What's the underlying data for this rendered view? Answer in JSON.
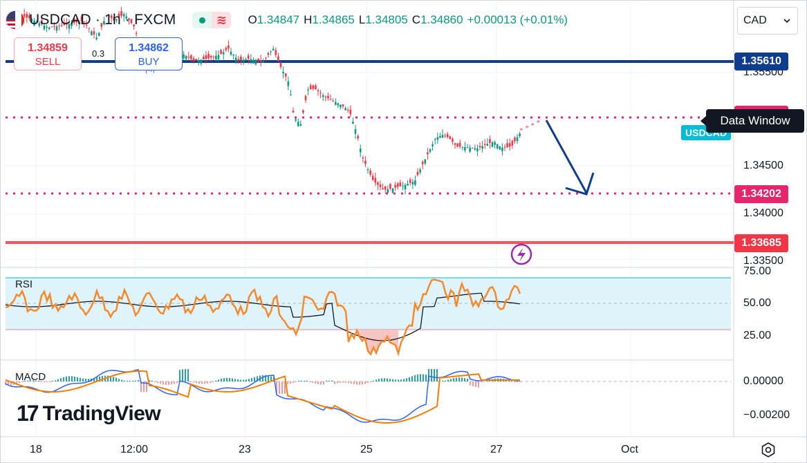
{
  "header": {
    "symbol": "USDCAD · 1h · FXCM",
    "ohlc": [
      {
        "label": "O",
        "value": "1.34847"
      },
      {
        "label": "H",
        "value": "1.34865"
      },
      {
        "label": "L",
        "value": "1.34805"
      },
      {
        "label": "C",
        "value": "1.34860"
      }
    ],
    "change": "+0.00013 (+0.01%)",
    "colors": {
      "up": "#089981",
      "down": "#f23645"
    }
  },
  "trade": {
    "sell_price": "1.34859",
    "sell_label": "SELL",
    "buy_price": "1.34862",
    "buy_label": "BUY",
    "spread": "0.3"
  },
  "currency_select": {
    "value": "CAD"
  },
  "price_axis": {
    "ticks": [
      "1.35500",
      "1.34500",
      "1.34000",
      "1.33500"
    ],
    "tags": {
      "resistance": "1.35610",
      "support_target": "1.34202",
      "support_low": "1.33685",
      "symbol": "USDCAD"
    }
  },
  "tooltip": "Data Window",
  "rsi": {
    "label": "RSI",
    "ticks": [
      "75.00",
      "50.00",
      "25.00"
    ]
  },
  "macd": {
    "label": "MACD",
    "ticks": [
      "0.00000",
      "−0.00200"
    ]
  },
  "time_axis": [
    "18",
    "12:00",
    "23",
    "25",
    "27",
    "Oct"
  ],
  "logo": {
    "mark": "17",
    "name": "TradingView"
  },
  "icons": [
    "flag-usd-cad-icon",
    "market-open-dot-icon",
    "wave-icon",
    "chevron-down-icon",
    "lightning-icon",
    "settings-icon"
  ],
  "colors": {
    "accent": "#2962ff",
    "resistance_line": "#0d3d8c",
    "support_dotted": "#e5266d",
    "support_line": "#f23645",
    "usdcad_tag": "#00bcd4",
    "rsi_line": "#f5892a"
  }
}
